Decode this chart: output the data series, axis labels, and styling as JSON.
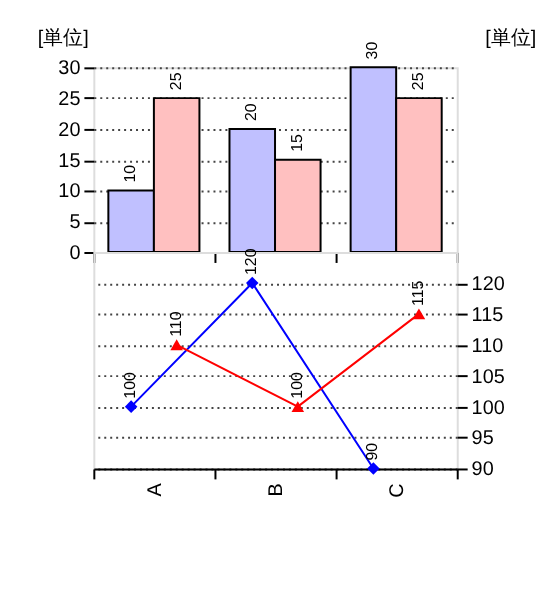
{
  "chart_data": [
    {
      "type": "bar",
      "ylabel": "[単位]",
      "categories": [
        null,
        null,
        null
      ],
      "series": [
        {
          "color": "#c0c0ff",
          "values": [
            10,
            20,
            30
          ]
        },
        {
          "color": "#ffc0c0",
          "values": [
            25,
            15,
            25
          ]
        }
      ],
      "ylim": [
        0,
        30
      ],
      "yticks": [
        0,
        5,
        10,
        15,
        20,
        25,
        30
      ],
      "grid": "y",
      "data_labels": true,
      "tick_labels": "y"
    },
    {
      "type": "line",
      "y2label": "[単位]",
      "categories": [
        "A",
        "B",
        "C"
      ],
      "series": [
        {
          "color": "#0000ff",
          "values": [
            100,
            120,
            90
          ],
          "axis": "y2",
          "marker": "diamond"
        },
        {
          "color": "#ff0000",
          "values": [
            110,
            100,
            115
          ],
          "axis": "y2",
          "marker": "triangle"
        }
      ],
      "y2lim": [
        90,
        125
      ],
      "y2ticks": [
        90,
        95,
        100,
        105,
        110,
        115,
        120
      ],
      "grid": "y",
      "data_labels": true
    }
  ]
}
